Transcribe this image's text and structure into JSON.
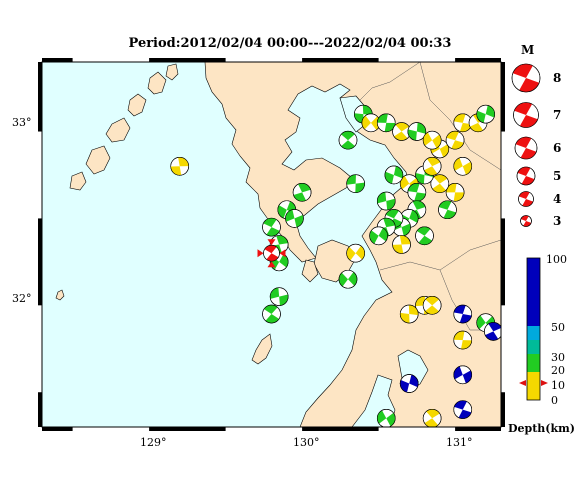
{
  "title": "Period:2012/02/04 00:00---2022/02/04 00:33",
  "axes": {
    "lat_labels": [
      "33°",
      "32°"
    ],
    "lon_labels": [
      "129°",
      "130°",
      "131°"
    ]
  },
  "legend": {
    "magnitude_title": "M",
    "magnitudes": [
      "8",
      "7",
      "6",
      "5",
      "4",
      "3"
    ],
    "depth_ticks": [
      "100",
      "50",
      "30",
      "20",
      "10",
      "0"
    ],
    "depth_label": "Depth(km)"
  },
  "colors": {
    "sea": "#e0ffff",
    "land": "#fde5c4",
    "shallow": "#f5d800",
    "mid": "#22cc22",
    "lightblue": "#00aadd",
    "deep": "#0000bb",
    "highlight": "#ee1111"
  },
  "chart_data": {
    "type": "map",
    "lon_range": [
      128.3,
      131.3
    ],
    "lat_range": [
      31.3,
      33.4
    ],
    "events": [
      {
        "lon": 131.0,
        "lat": 32.65,
        "depth": 8
      },
      {
        "lon": 130.9,
        "lat": 32.7,
        "depth": 10
      },
      {
        "lon": 130.8,
        "lat": 32.75,
        "depth": 12
      },
      {
        "lon": 130.7,
        "lat": 32.7,
        "depth": 10
      },
      {
        "lon": 130.75,
        "lat": 32.65,
        "depth": 11
      },
      {
        "lon": 130.85,
        "lat": 32.8,
        "depth": 9
      },
      {
        "lon": 130.6,
        "lat": 32.75,
        "depth": 12
      },
      {
        "lon": 130.9,
        "lat": 32.9,
        "depth": 8
      },
      {
        "lon": 131.0,
        "lat": 32.95,
        "depth": 9
      },
      {
        "lon": 130.75,
        "lat": 32.55,
        "depth": 14
      },
      {
        "lon": 130.7,
        "lat": 32.5,
        "depth": 13
      },
      {
        "lon": 130.65,
        "lat": 32.45,
        "depth": 12
      },
      {
        "lon": 130.6,
        "lat": 32.5,
        "depth": 14
      },
      {
        "lon": 130.55,
        "lat": 32.45,
        "depth": 13
      },
      {
        "lon": 130.5,
        "lat": 32.4,
        "depth": 12
      },
      {
        "lon": 130.55,
        "lat": 32.6,
        "depth": 14
      },
      {
        "lon": 130.8,
        "lat": 32.4,
        "depth": 14
      },
      {
        "lon": 130.65,
        "lat": 32.35,
        "depth": 8
      },
      {
        "lon": 130.35,
        "lat": 32.3,
        "depth": 6
      },
      {
        "lon": 130.35,
        "lat": 32.7,
        "depth": 14
      },
      {
        "lon": 130.3,
        "lat": 32.95,
        "depth": 14
      },
      {
        "lon": 130.4,
        "lat": 33.1,
        "depth": 14
      },
      {
        "lon": 130.45,
        "lat": 33.05,
        "depth": 8
      },
      {
        "lon": 130.55,
        "lat": 33.05,
        "depth": 14
      },
      {
        "lon": 130.65,
        "lat": 33.0,
        "depth": 6
      },
      {
        "lon": 130.75,
        "lat": 33.0,
        "depth": 14
      },
      {
        "lon": 130.85,
        "lat": 32.95,
        "depth": 5
      },
      {
        "lon": 131.05,
        "lat": 33.05,
        "depth": 6
      },
      {
        "lon": 131.15,
        "lat": 33.05,
        "depth": 6
      },
      {
        "lon": 131.2,
        "lat": 33.1,
        "depth": 14
      },
      {
        "lon": 131.05,
        "lat": 32.8,
        "depth": 6
      },
      {
        "lon": 130.95,
        "lat": 32.55,
        "depth": 14
      },
      {
        "lon": 130.0,
        "lat": 32.65,
        "depth": 14
      },
      {
        "lon": 129.9,
        "lat": 32.55,
        "depth": 14
      },
      {
        "lon": 129.95,
        "lat": 32.5,
        "depth": 14
      },
      {
        "lon": 129.8,
        "lat": 32.45,
        "depth": 14
      },
      {
        "lon": 129.85,
        "lat": 32.35,
        "depth": 14
      },
      {
        "lon": 129.85,
        "lat": 32.25,
        "depth": 14
      },
      {
        "lon": 129.85,
        "lat": 32.05,
        "depth": 14
      },
      {
        "lon": 129.8,
        "lat": 31.95,
        "depth": 14
      },
      {
        "lon": 129.2,
        "lat": 32.8,
        "depth": 6
      },
      {
        "lon": 130.3,
        "lat": 32.15,
        "depth": 14
      },
      {
        "lon": 130.8,
        "lat": 32.0,
        "depth": 6
      },
      {
        "lon": 130.85,
        "lat": 32.0,
        "depth": 6
      },
      {
        "lon": 130.7,
        "lat": 31.95,
        "depth": 6
      },
      {
        "lon": 131.2,
        "lat": 31.9,
        "depth": 14
      },
      {
        "lon": 131.05,
        "lat": 31.8,
        "depth": 6
      },
      {
        "lon": 130.85,
        "lat": 31.35,
        "depth": 6
      },
      {
        "lon": 130.7,
        "lat": 31.55,
        "depth": 6
      },
      {
        "lon": 130.55,
        "lat": 31.35,
        "depth": 14
      },
      {
        "lon": 131.05,
        "lat": 31.95,
        "depth": 90
      },
      {
        "lon": 131.25,
        "lat": 31.85,
        "depth": 80
      },
      {
        "lon": 130.7,
        "lat": 31.55,
        "depth": 80
      },
      {
        "lon": 131.05,
        "lat": 31.6,
        "depth": 80
      },
      {
        "lon": 131.05,
        "lat": 31.4,
        "depth": 80
      }
    ],
    "highlight_event": {
      "lon": 129.8,
      "lat": 32.3,
      "depth": 10,
      "mag": 5
    }
  }
}
